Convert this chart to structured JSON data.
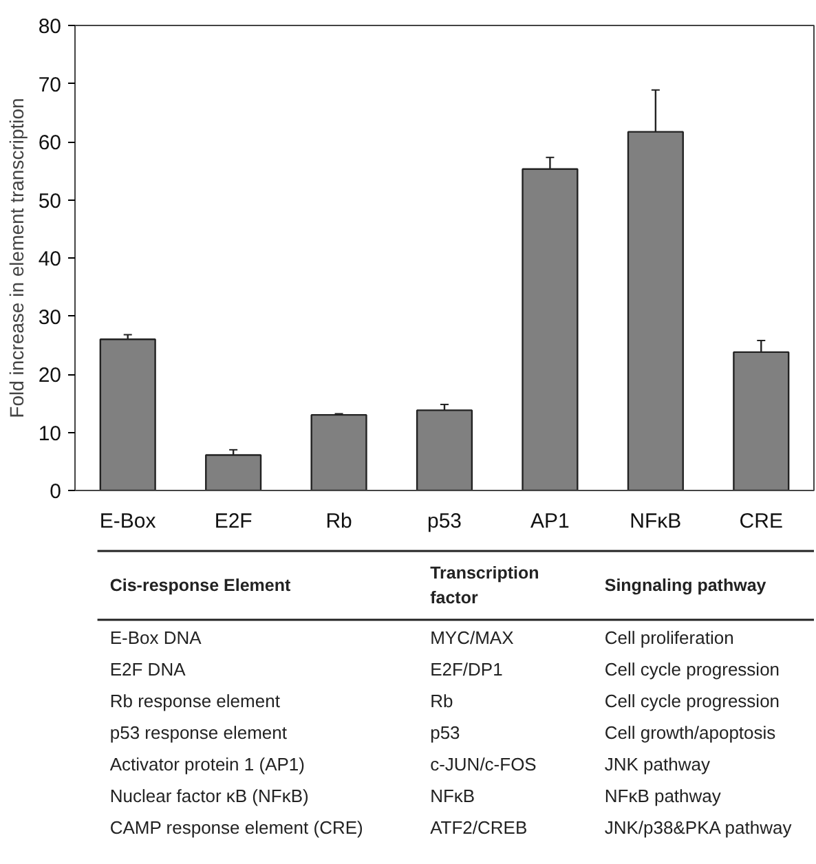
{
  "chart_data": [
    {
      "type": "bar",
      "ylabel": "Fold increase in element transcription",
      "categories": [
        "E-Box",
        "E2F",
        "Rb",
        "p53",
        "AP1",
        "NFκB",
        "CRE"
      ],
      "values": [
        26,
        6.1,
        13,
        13.8,
        55.3,
        61.7,
        23.8
      ],
      "errors": [
        0.8,
        0.9,
        0.2,
        1,
        2,
        7.2,
        2
      ],
      "color": "#808080",
      "ylim": [
        0,
        80
      ],
      "yticks": [
        0,
        10,
        20,
        30,
        40,
        50,
        60,
        70,
        80
      ],
      "grid": false
    },
    {
      "type": "other",
      "annotations": [
        "Cis-response Element",
        "Transcription\nfactor",
        "Singnaling pathway",
        "E-Box DNA",
        "MYC/MAX",
        "Cell proliferation",
        "E2F DNA",
        "E2F/DP1",
        "Cell cycle progression",
        "Rb response element",
        "Rb",
        "Cell cycle progression",
        "p53 response element",
        "p53",
        "Cell growth/apoptosis",
        "Activator protein 1 (AP1)",
        "c-JUN/c-FOS",
        "JNK pathway",
        "Nuclear factor κB (NFκB)",
        "NFκB",
        "NFκB pathway",
        "CAMP response element (CRE)",
        "ATF2/CREB",
        "JNK/p38&PKA pathway"
      ]
    }
  ]
}
